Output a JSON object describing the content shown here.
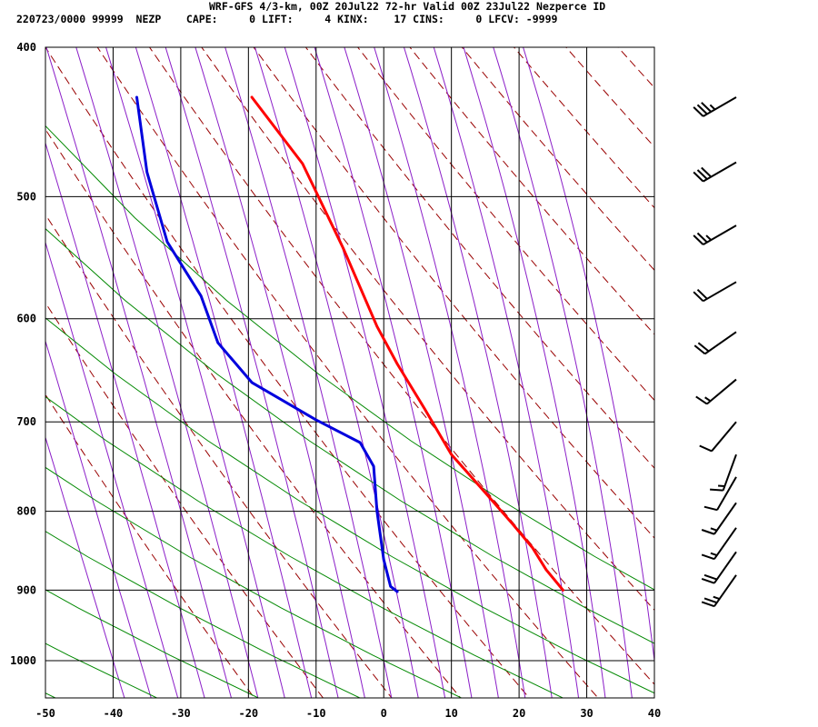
{
  "header": {
    "line1": "WRF-GFS 4/3-km, 00Z 20Jul22 72-hr Valid 00Z 23Jul22 Nezperce ID",
    "line2": "220723/0000 99999  NEZP    CAPE:     0 LIFT:     4 KINX:    17 CINS:     0 LFCV: -9999"
  },
  "chart_data": {
    "type": "line",
    "subtype": "skew-t-log-p sounding",
    "x_axis": {
      "label": "",
      "ticks": [
        -50,
        -40,
        -30,
        -20,
        -10,
        0,
        10,
        20,
        30,
        40
      ],
      "range": [
        -50,
        40
      ],
      "units": "degC"
    },
    "y_axis": {
      "label": "",
      "ticks": [
        400,
        500,
        600,
        700,
        800,
        900,
        1000
      ],
      "range": [
        400,
        1050
      ],
      "units": "hPa",
      "scale": "log"
    },
    "grid": true,
    "colors": {
      "temperature": "#ff0000",
      "dewpoint": "#0000dd",
      "dry_adiabat": "#990000",
      "moist_adiabat": "#8b1ec8",
      "mixing_ratio": "#008800",
      "grid": "#000000"
    },
    "series": [
      {
        "id": "temperature",
        "points": [
          [
            -19.5,
            431
          ],
          [
            -12,
            476
          ],
          [
            -6,
            540
          ],
          [
            -1,
            607
          ],
          [
            2,
            642
          ],
          [
            6,
            686
          ],
          [
            10,
            735
          ],
          [
            15,
            778
          ],
          [
            19,
            815
          ],
          [
            22,
            845
          ],
          [
            24,
            873
          ],
          [
            26.5,
            900
          ]
        ]
      },
      {
        "id": "dewpoint",
        "points": [
          [
            -36.5,
            431
          ],
          [
            -35,
            482
          ],
          [
            -32,
            535
          ],
          [
            -27,
            580
          ],
          [
            -24.5,
            622
          ],
          [
            -19.5,
            660
          ],
          [
            -10,
            698
          ],
          [
            -3.5,
            722
          ],
          [
            -1.5,
            748
          ],
          [
            -1,
            800
          ],
          [
            0,
            860
          ],
          [
            1,
            895
          ],
          [
            2,
            902
          ]
        ]
      }
    ],
    "wind_barbs": [
      {
        "pressure": 431,
        "speed_kt": 35,
        "dir_deg": 240
      },
      {
        "pressure": 475,
        "speed_kt": 30,
        "dir_deg": 240
      },
      {
        "pressure": 522,
        "speed_kt": 25,
        "dir_deg": 240
      },
      {
        "pressure": 568,
        "speed_kt": 20,
        "dir_deg": 240
      },
      {
        "pressure": 612,
        "speed_kt": 20,
        "dir_deg": 235
      },
      {
        "pressure": 657,
        "speed_kt": 15,
        "dir_deg": 230
      },
      {
        "pressure": 700,
        "speed_kt": 10,
        "dir_deg": 220
      },
      {
        "pressure": 735,
        "speed_kt": 15,
        "dir_deg": 200
      },
      {
        "pressure": 760,
        "speed_kt": 10,
        "dir_deg": 210
      },
      {
        "pressure": 790,
        "speed_kt": 15,
        "dir_deg": 215
      },
      {
        "pressure": 820,
        "speed_kt": 15,
        "dir_deg": 215
      },
      {
        "pressure": 850,
        "speed_kt": 20,
        "dir_deg": 215
      },
      {
        "pressure": 880,
        "speed_kt": 25,
        "dir_deg": 215
      }
    ]
  }
}
